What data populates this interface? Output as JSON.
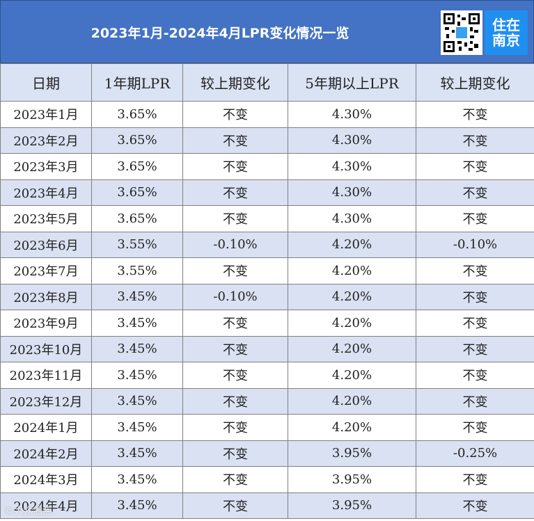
{
  "title": "2023年1月-2024年4月LPR变化情况一览",
  "logo": {
    "line1": "住在",
    "line2": "南京"
  },
  "table": {
    "headers": [
      "日期",
      "1年期LPR",
      "较上期变化",
      "5年期以上LPR",
      "较上期变化"
    ],
    "rows": [
      [
        "2023年1月",
        "3.65%",
        "不变",
        "4.30%",
        "不变"
      ],
      [
        "2023年2月",
        "3.65%",
        "不变",
        "4.30%",
        "不变"
      ],
      [
        "2023年3月",
        "3.65%",
        "不变",
        "4.30%",
        "不变"
      ],
      [
        "2023年4月",
        "3.65%",
        "不变",
        "4.30%",
        "不变"
      ],
      [
        "2023年5月",
        "3.65%",
        "不变",
        "4.30%",
        "不变"
      ],
      [
        "2023年6月",
        "3.55%",
        "-0.10%",
        "4.20%",
        "-0.10%"
      ],
      [
        "2023年7月",
        "3.55%",
        "不变",
        "4.20%",
        "不变"
      ],
      [
        "2023年8月",
        "3.45%",
        "-0.10%",
        "4.20%",
        "不变"
      ],
      [
        "2023年9月",
        "3.45%",
        "不变",
        "4.20%",
        "不变"
      ],
      [
        "2023年10月",
        "3.45%",
        "不变",
        "4.20%",
        "不变"
      ],
      [
        "2023年11月",
        "3.45%",
        "不变",
        "4.20%",
        "不变"
      ],
      [
        "2023年12月",
        "3.45%",
        "不变",
        "4.20%",
        "不变"
      ],
      [
        "2024年1月",
        "3.45%",
        "不变",
        "4.20%",
        "不变"
      ],
      [
        "2024年2月",
        "3.45%",
        "不变",
        "3.95%",
        "-0.25%"
      ],
      [
        "2024年3月",
        "3.45%",
        "不变",
        "3.95%",
        "不变"
      ],
      [
        "2024年4月",
        "3.45%",
        "不变",
        "3.95%",
        "不变"
      ]
    ]
  },
  "colors": {
    "title_bg": "#4472c4",
    "header_bg": "#dae3f3",
    "stripe": "#d9e1f2",
    "logo_bg": "#1f8ff0"
  },
  "icons": {
    "qr": "qr-code-icon"
  },
  "watermark": "©大众看点"
}
